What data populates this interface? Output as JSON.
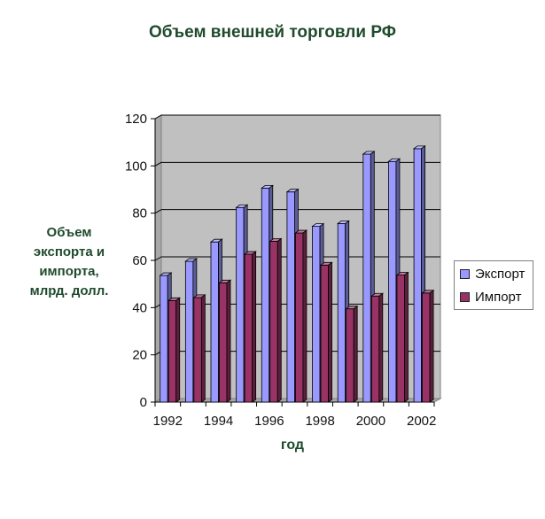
{
  "chart_data": {
    "type": "bar",
    "title": "Объем внешней торговли РФ",
    "xlabel": "год",
    "ylabel": "Объем\nэкспорта и\nимпорта,\nмлрд. долл.",
    "categories": [
      "1992",
      "1993",
      "1994",
      "1995",
      "1996",
      "1997",
      "1998",
      "1999",
      "2000",
      "2001",
      "2002"
    ],
    "x_tick_labels": [
      "1992",
      "1994",
      "1996",
      "1998",
      "2000",
      "2002"
    ],
    "y_ticks": [
      "0",
      "20",
      "40",
      "60",
      "80",
      "100",
      "120"
    ],
    "ylim": [
      0,
      120
    ],
    "grid": true,
    "legend_position": "right",
    "series": [
      {
        "name": "Экспорт",
        "color": "#9999ff",
        "values": [
          53.6,
          59.6,
          67.8,
          82.4,
          90.6,
          89.0,
          74.4,
          75.6,
          105.0,
          101.9,
          107.3
        ]
      },
      {
        "name": "Импорт",
        "color": "#993366",
        "values": [
          43.0,
          44.3,
          50.5,
          62.6,
          68.1,
          71.6,
          58.0,
          39.5,
          44.9,
          53.8,
          46.2
        ]
      }
    ]
  }
}
